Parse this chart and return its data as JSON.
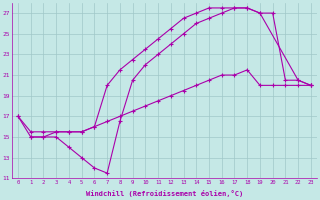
{
  "xlabel": "Windchill (Refroidissement éolien,°C)",
  "xlim": [
    -0.5,
    23.5
  ],
  "ylim": [
    11,
    28
  ],
  "xticks": [
    0,
    1,
    2,
    3,
    4,
    5,
    6,
    7,
    8,
    9,
    10,
    11,
    12,
    13,
    14,
    15,
    16,
    17,
    18,
    19,
    20,
    21,
    22,
    23
  ],
  "yticks": [
    11,
    13,
    15,
    17,
    19,
    21,
    23,
    25,
    27
  ],
  "bg_color": "#c5e8e6",
  "line_color": "#aa00aa",
  "grid_color": "#a0c8c8",
  "line1_x": [
    1,
    2,
    3,
    4,
    5,
    6,
    7,
    8,
    9,
    10,
    11,
    12,
    13,
    14,
    15,
    16,
    17,
    18,
    19,
    22,
    23
  ],
  "line1_y": [
    15,
    15,
    15,
    14,
    13,
    12,
    11.5,
    16.5,
    20.5,
    22,
    23,
    24,
    25,
    26,
    26.5,
    27,
    27.5,
    27.5,
    27,
    20.5,
    20
  ],
  "line2_x": [
    0,
    1,
    2,
    3,
    4,
    5,
    6,
    7,
    8,
    9,
    10,
    11,
    12,
    13,
    14,
    15,
    16,
    17,
    18,
    19,
    20,
    21,
    22,
    23
  ],
  "line2_y": [
    17,
    15,
    15,
    15.5,
    15.5,
    15.5,
    16,
    20,
    21.5,
    22.5,
    23.5,
    24.5,
    25.5,
    26.5,
    27,
    27.5,
    27.5,
    27.5,
    27.5,
    27,
    27,
    20.5,
    20.5,
    20
  ],
  "line3_x": [
    0,
    1,
    2,
    3,
    4,
    5,
    6,
    7,
    8,
    9,
    10,
    11,
    12,
    13,
    14,
    15,
    16,
    17,
    18,
    19,
    20,
    21,
    22,
    23
  ],
  "line3_y": [
    17,
    15.5,
    15.5,
    15.5,
    15.5,
    15.5,
    16,
    16.5,
    17,
    17.5,
    18,
    18.5,
    19,
    19.5,
    20,
    20.5,
    21,
    21,
    21.5,
    20,
    20,
    20,
    20,
    20
  ]
}
